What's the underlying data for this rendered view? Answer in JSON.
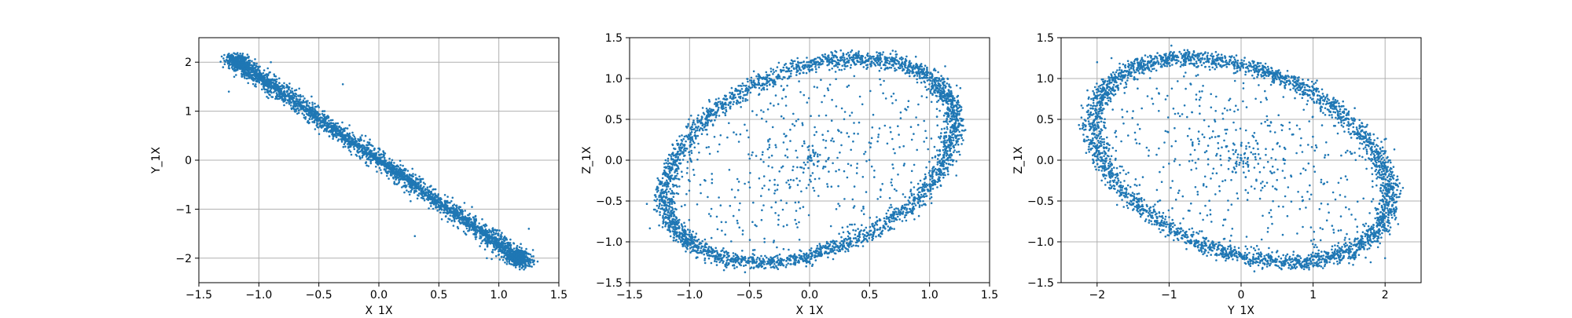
{
  "colors": {
    "points": "#1f77b4",
    "grid": "#b0b0b0",
    "axis": "#000000",
    "background": "#ffffff"
  },
  "chart_data": [
    {
      "type": "scatter",
      "xlabel": "X_1X",
      "ylabel": "Y_1X",
      "xlim": [
        -1.5,
        1.5
      ],
      "ylim": [
        -2.5,
        2.5
      ],
      "xticks": [
        -1.5,
        -1.0,
        -0.5,
        0.0,
        0.5,
        1.0,
        1.5
      ],
      "xticklabels": [
        "−1.5",
        "−1.0",
        "−0.5",
        "0.0",
        "0.5",
        "1.0",
        "1.5"
      ],
      "yticks": [
        -2,
        -1,
        0,
        1,
        2
      ],
      "yticklabels": [
        "−2",
        "−1",
        "0",
        "1",
        "2"
      ],
      "grid": true,
      "ring": {
        "amp_x": 1.2,
        "amp_y": 2.05,
        "phase_y_deg": 180,
        "thickness_frac": 0.07
      },
      "points": [
        [
          -1.2,
          2.05
        ],
        [
          1.2,
          -2.05
        ],
        [
          -0.9,
          2.0
        ],
        [
          0.9,
          -2.0
        ],
        [
          0.0,
          0.0
        ],
        [
          0.3,
          -1.55
        ],
        [
          -0.3,
          1.55
        ],
        [
          1.25,
          -1.4
        ],
        [
          -1.25,
          1.4
        ]
      ]
    },
    {
      "type": "scatter",
      "xlabel": "X_1X",
      "ylabel": "Z_1X",
      "xlim": [
        -1.5,
        1.5
      ],
      "ylim": [
        -1.5,
        1.5
      ],
      "xticks": [
        -1.5,
        -1.0,
        -0.5,
        0.0,
        0.5,
        1.0,
        1.5
      ],
      "xticklabels": [
        "−1.5",
        "−1.0",
        "−0.5",
        "0.0",
        "0.5",
        "1.0",
        "1.5"
      ],
      "yticks": [
        -1.5,
        -1.0,
        -0.5,
        0.0,
        0.5,
        1.0,
        1.5
      ],
      "yticklabels": [
        "−1.5",
        "−1.0",
        "−0.5",
        "0.0",
        "0.5",
        "1.0",
        "1.5"
      ],
      "grid": true,
      "ring": {
        "amp_x": 1.2,
        "amp_y": 1.25,
        "phase_y_deg": 70,
        "thickness_frac": 0.07
      },
      "points": [
        [
          1.28,
          0.5
        ],
        [
          -1.28,
          -0.5
        ],
        [
          0.4,
          1.25
        ],
        [
          -0.4,
          -1.25
        ],
        [
          0.0,
          0.0
        ],
        [
          1.2,
          0.0
        ],
        [
          -1.2,
          0.0
        ],
        [
          0.0,
          1.1
        ],
        [
          0.0,
          -1.1
        ]
      ]
    },
    {
      "type": "scatter",
      "xlabel": "Y_1X",
      "ylabel": "Z_1X",
      "xlim": [
        -2.5,
        2.5
      ],
      "ylim": [
        -1.5,
        1.5
      ],
      "xticks": [
        -2,
        -1,
        0,
        1,
        2
      ],
      "xticklabels": [
        "−2",
        "−1",
        "0",
        "1",
        "2"
      ],
      "yticks": [
        -1.5,
        -1.0,
        -0.5,
        0.0,
        0.5,
        1.0,
        1.5
      ],
      "yticklabels": [
        "−1.5",
        "−1.0",
        "−0.5",
        "0.0",
        "0.5",
        "1.0",
        "1.5"
      ],
      "grid": true,
      "ring": {
        "amp_x": 2.05,
        "amp_y": 1.25,
        "phase_y_deg": 250,
        "thickness_frac": 0.07
      },
      "points": [
        [
          -2.0,
          1.2
        ],
        [
          2.0,
          -1.2
        ],
        [
          -1.8,
          1.25
        ],
        [
          1.8,
          -1.25
        ],
        [
          0.0,
          0.0
        ],
        [
          -1.5,
          0.6
        ],
        [
          1.5,
          -0.6
        ],
        [
          0.5,
          0.2
        ],
        [
          -0.5,
          -0.2
        ]
      ]
    }
  ]
}
